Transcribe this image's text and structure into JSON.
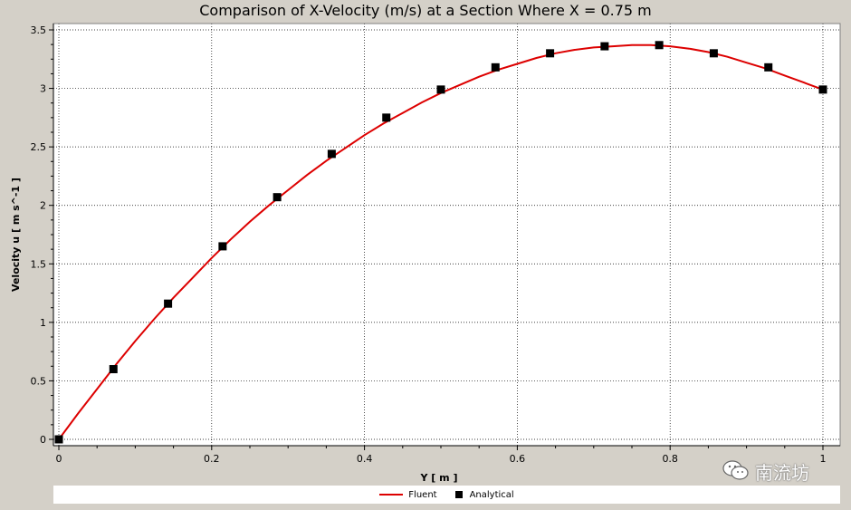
{
  "chart_data": {
    "type": "line",
    "title": "Comparison of X-Velocity (m/s) at a Section Where X = 0.75 m",
    "xlabel": "Y [ m ]",
    "ylabel": "Velocity u [ m s^-1 ]",
    "xlim": [
      0,
      1
    ],
    "ylim": [
      0,
      3.5
    ],
    "x_ticks": [
      "0",
      "0.2",
      "0.4",
      "0.6",
      "0.8",
      "1"
    ],
    "y_ticks": [
      "0",
      "0.5",
      "1",
      "1.5",
      "2",
      "2.5",
      "3",
      "3.5"
    ],
    "grid": true,
    "legend_position": "bottom",
    "series": [
      {
        "name": "Fluent",
        "style": "line",
        "color": "#dd0000",
        "x": [
          0,
          0.025,
          0.05,
          0.075,
          0.1,
          0.125,
          0.15,
          0.175,
          0.2,
          0.225,
          0.25,
          0.275,
          0.3,
          0.325,
          0.35,
          0.375,
          0.4,
          0.425,
          0.45,
          0.475,
          0.5,
          0.525,
          0.55,
          0.575,
          0.6,
          0.625,
          0.65,
          0.675,
          0.7,
          0.725,
          0.75,
          0.775,
          0.8,
          0.825,
          0.85,
          0.875,
          0.9,
          0.925,
          0.95,
          0.975,
          1
        ],
        "y": [
          0,
          0.22,
          0.43,
          0.64,
          0.84,
          1.03,
          1.21,
          1.38,
          1.55,
          1.71,
          1.86,
          2.0,
          2.13,
          2.26,
          2.38,
          2.49,
          2.6,
          2.7,
          2.79,
          2.88,
          2.96,
          3.03,
          3.1,
          3.16,
          3.21,
          3.26,
          3.3,
          3.33,
          3.35,
          3.36,
          3.37,
          3.37,
          3.36,
          3.34,
          3.31,
          3.27,
          3.22,
          3.17,
          3.11,
          3.05,
          2.99
        ]
      },
      {
        "name": "Analytical",
        "style": "markers",
        "color": "#000000",
        "x": [
          0,
          0.0714,
          0.1429,
          0.2143,
          0.2857,
          0.3571,
          0.4286,
          0.5,
          0.5714,
          0.6429,
          0.7143,
          0.7857,
          0.8571,
          0.9286,
          1
        ],
        "y": [
          0,
          0.6,
          1.16,
          1.65,
          2.07,
          2.44,
          2.75,
          2.99,
          3.18,
          3.3,
          3.36,
          3.37,
          3.3,
          3.18,
          2.99
        ]
      }
    ]
  },
  "watermark": {
    "text": "南流坊",
    "icon": "wechat-icon"
  }
}
